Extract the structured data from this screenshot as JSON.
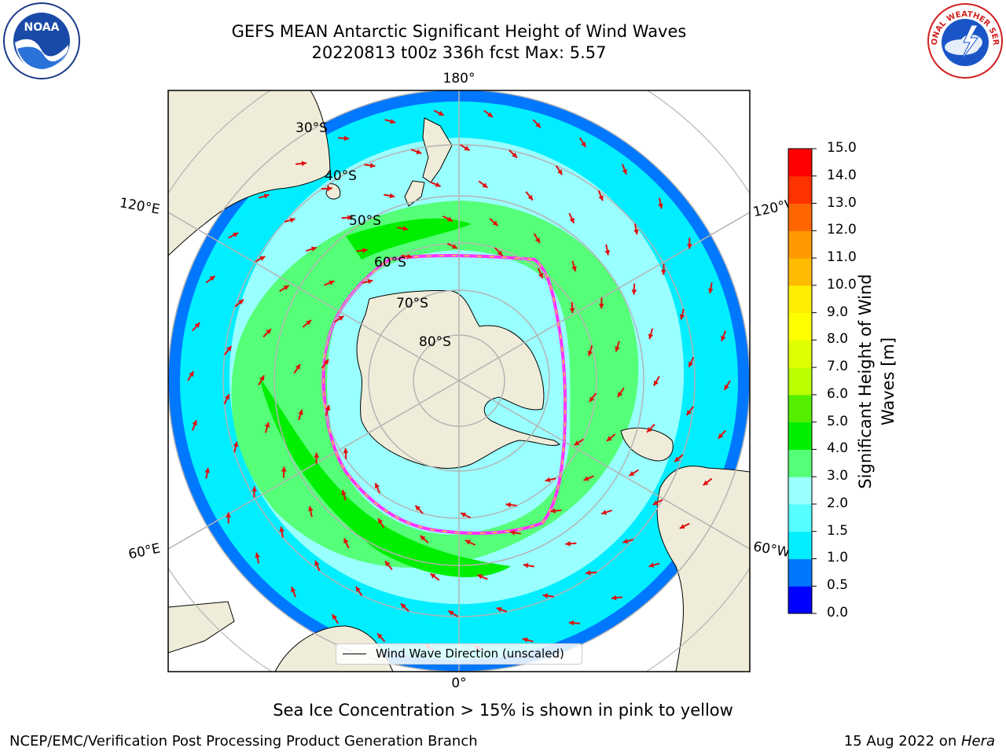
{
  "title_line1": "GEFS MEAN Antarctic Significant Height of Wind Waves",
  "title_line2": "20220813 t00z 336h fcst   Max: 5.57",
  "map": {
    "projection": "south-polar-stereographic",
    "longitude_labels": {
      "top": "180°",
      "bottom": "0°",
      "left_upper": "120°E",
      "left_lower": "60°E",
      "right_upper": "120°W",
      "right_lower": "60°W"
    },
    "latitude_labels": [
      "30°S",
      "40°S",
      "50°S",
      "60°S",
      "70°S",
      "80°S"
    ],
    "land_color": "#efedd9",
    "ocean_outside_color": "#ffffff",
    "sea_ice_colors": [
      "#ff33ff",
      "#ffcc33"
    ],
    "arrow_color": "#e01010",
    "graticule_color": "#b4b4b4"
  },
  "legend": {
    "label": "Wind Wave Direction (unscaled)"
  },
  "colorbar": {
    "label": "Significant Height of Wind Waves [m]",
    "title_lines": [
      "Significant Height of Wind",
      "Waves [m]"
    ],
    "ticks": [
      "0.0",
      "0.5",
      "1.0",
      "1.5",
      "2.0",
      "3.0",
      "4.0",
      "5.0",
      "6.0",
      "7.0",
      "8.0",
      "9.0",
      "10.0",
      "11.0",
      "12.0",
      "13.0",
      "14.0",
      "15.0"
    ],
    "colors": [
      "#0000ff",
      "#0077ff",
      "#00eeff",
      "#55ffff",
      "#99ffff",
      "#55ff77",
      "#00ee00",
      "#55ee00",
      "#bbff00",
      "#ddff00",
      "#ffff00",
      "#ffee00",
      "#ffbb00",
      "#ff9900",
      "#ff6600",
      "#ff3300",
      "#ff0000"
    ]
  },
  "note": "Sea Ice Concentration > 15% is shown in pink to yellow",
  "credit": "NCEP/EMC/Verification Post Processing Product Generation Branch",
  "date_text": "15 Aug 2022 on ",
  "date_machine": "Hera",
  "logos": {
    "left": "NOAA",
    "right": "NATIONAL WEATHER SERVICE"
  }
}
